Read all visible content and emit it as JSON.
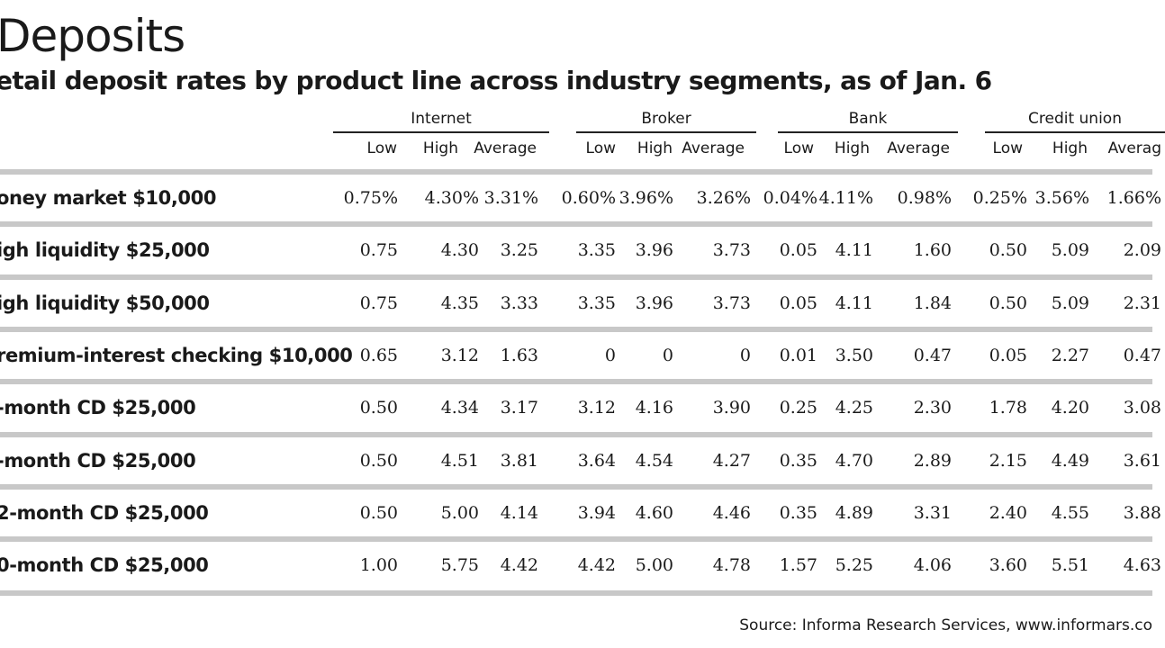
{
  "title": "Deposits",
  "subtitle": "etail deposit rates by product line across industry segments, as of Jan. 6",
  "groups": [
    "Internet",
    "Broker",
    "Bank",
    "Credit union"
  ],
  "subcolumns": [
    "Low",
    "High",
    "Average"
  ],
  "subcolumns_last": [
    "Low",
    "High",
    "Averag"
  ],
  "rows": [
    {
      "label": "oney market $10,000",
      "values": [
        "0.75%",
        "4.30%",
        "3.31%",
        "0.60%",
        "3.96%",
        "3.26%",
        "0.04%",
        "4.11%",
        "0.98%",
        "0.25%",
        "3.56%",
        "1.66%"
      ]
    },
    {
      "label": "igh liquidity $25,000",
      "values": [
        "0.75",
        "4.30",
        "3.25",
        "3.35",
        "3.96",
        "3.73",
        "0.05",
        "4.11",
        "1.60",
        "0.50",
        "5.09",
        "2.09"
      ]
    },
    {
      "label": "igh liquidity $50,000",
      "values": [
        "0.75",
        "4.35",
        "3.33",
        "3.35",
        "3.96",
        "3.73",
        "0.05",
        "4.11",
        "1.84",
        "0.50",
        "5.09",
        "2.31"
      ]
    },
    {
      "label": "remium-interest checking $10,000",
      "values": [
        "0.65",
        "3.12",
        "1.63",
        "0",
        "0",
        "0",
        "0.01",
        "3.50",
        "0.47",
        "0.05",
        "2.27",
        "0.47"
      ]
    },
    {
      "label": "-month CD $25,000",
      "values": [
        "0.50",
        "4.34",
        "3.17",
        "3.12",
        "4.16",
        "3.90",
        "0.25",
        "4.25",
        "2.30",
        "1.78",
        "4.20",
        "3.08"
      ]
    },
    {
      "label": "-month CD $25,000",
      "values": [
        "0.50",
        "4.51",
        "3.81",
        "3.64",
        "4.54",
        "4.27",
        "0.35",
        "4.70",
        "2.89",
        "2.15",
        "4.49",
        "3.61"
      ]
    },
    {
      "label": "2-month CD $25,000",
      "values": [
        "0.50",
        "5.00",
        "4.14",
        "3.94",
        "4.60",
        "4.46",
        "0.35",
        "4.89",
        "3.31",
        "2.40",
        "4.55",
        "3.88"
      ]
    },
    {
      "label": "0-month CD $25,000",
      "values": [
        "1.00",
        "5.75",
        "4.42",
        "4.42",
        "5.00",
        "4.78",
        "1.57",
        "5.25",
        "4.06",
        "3.60",
        "5.51",
        "4.63"
      ]
    }
  ],
  "source": "Source: Informa Research Services, www.informars.co"
}
